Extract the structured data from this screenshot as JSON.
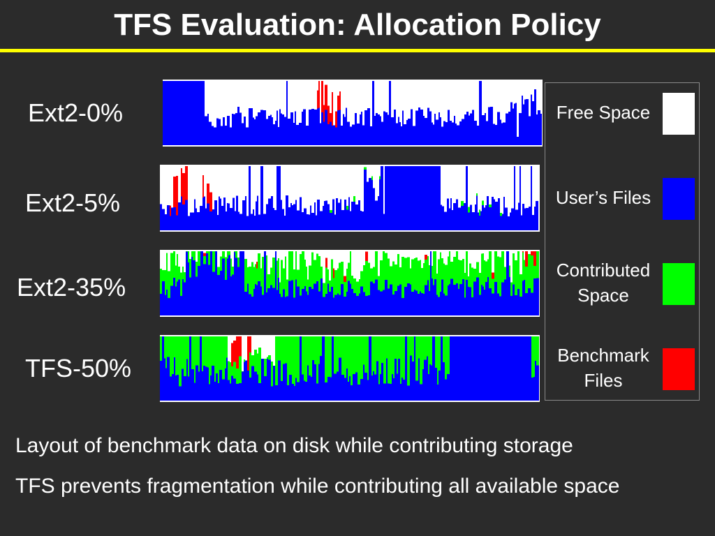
{
  "title": "TFS Evaluation: Allocation Policy",
  "rows": [
    {
      "label": "Ext2-0%"
    },
    {
      "label": "Ext2-5%"
    },
    {
      "label": "Ext2-35%"
    },
    {
      "label": "TFS-50%"
    }
  ],
  "legend": [
    {
      "label_line1": "Free Space",
      "label_line2": "",
      "color": "#ffffff"
    },
    {
      "label_line1": "User’s Files",
      "label_line2": "",
      "color": "#0000ff"
    },
    {
      "label_line1": "Contributed",
      "label_line2": "Space",
      "color": "#00ff00"
    },
    {
      "label_line1": "Benchmark",
      "label_line2": "Files",
      "color": "#ff0000"
    }
  ],
  "captions": [
    "Layout of benchmark data on disk while contributing storage",
    "TFS prevents fragmentation while contributing all available space"
  ],
  "colors": {
    "free": "#ffffff",
    "user": "#0000ff",
    "contributed": "#00ff00",
    "benchmark": "#ff0000",
    "background": "#2b2b2b",
    "accent_rule": "#ffff00"
  }
}
